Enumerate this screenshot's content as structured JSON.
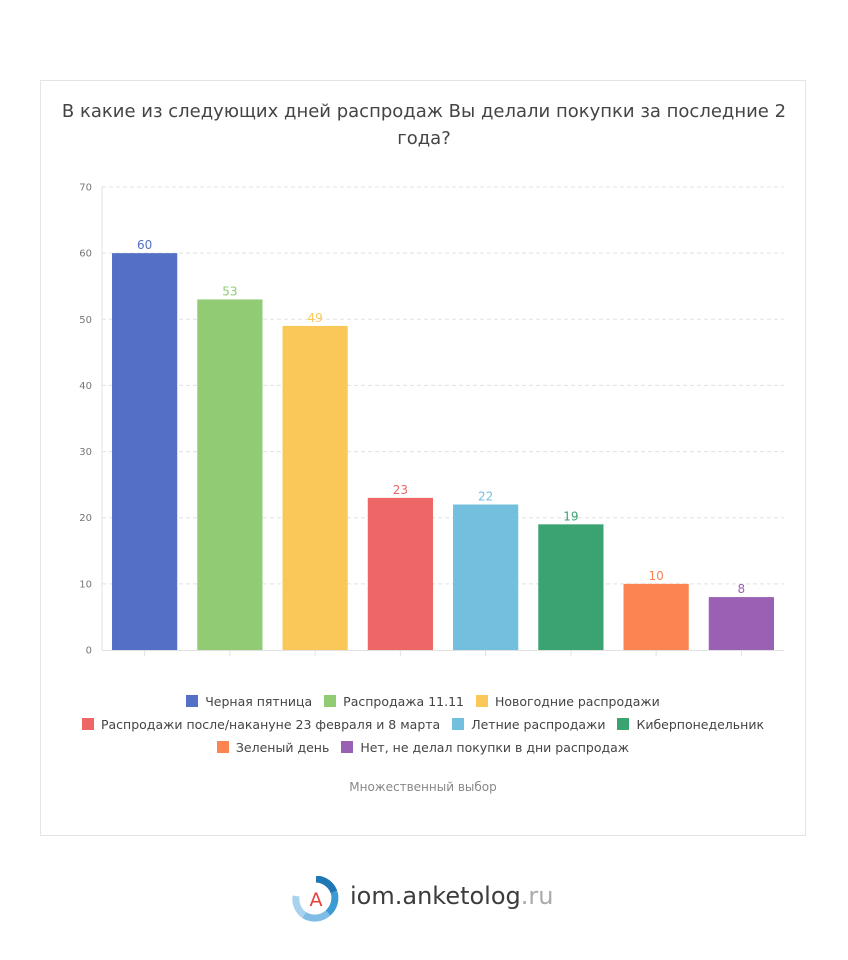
{
  "title": "В какие из следующих дней распродаж Вы делали покупки за последние 2 года?",
  "subtitle": "Множественный выбор",
  "logo": {
    "name": "iom.anketolog",
    "tld": ".ru",
    "mark_letter": "A"
  },
  "chart_data": {
    "type": "bar",
    "title": "В какие из следующих дней распродаж Вы делали покупки за последние 2 года?",
    "categories": [
      "Черная пятница",
      "Распродажа 11.11",
      "Новогодние распродажи",
      "Распродажи после/накануне 23 февраля и 8 марта",
      "Летние распродажи",
      "Киберпонедельник",
      "Зеленый день",
      "Нет, не делал покупки в дни распродаж"
    ],
    "values": [
      60,
      53,
      49,
      23,
      22,
      19,
      10,
      8
    ],
    "colors": [
      "#5470c6",
      "#91cc75",
      "#fac858",
      "#ee6666",
      "#73c0de",
      "#3ba272",
      "#fc8452",
      "#9a60b4"
    ],
    "ylim": [
      0,
      70
    ],
    "yticks": [
      0,
      10,
      20,
      30,
      40,
      50,
      60,
      70
    ],
    "grid": true,
    "legend_placement": "bottom"
  },
  "legend_rows": [
    [
      0,
      1,
      2
    ],
    [
      3,
      4,
      5
    ],
    [
      6,
      7
    ]
  ]
}
